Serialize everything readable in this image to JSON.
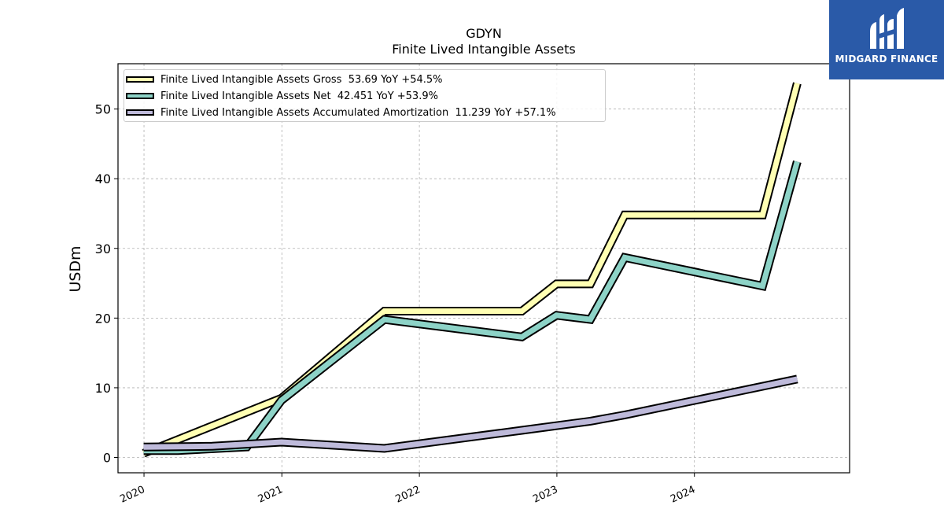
{
  "chart_data": {
    "type": "line",
    "title": "GDYN",
    "subtitle": "Finite Lived Intangible Assets",
    "ylabel": "USDm",
    "xlabel": "",
    "ylim": [
      -2.2,
      56.5
    ],
    "yticks": [
      0,
      10,
      20,
      30,
      40,
      50
    ],
    "xticks": [
      "2020",
      "2021",
      "2022",
      "2023",
      "2024"
    ],
    "grid": true,
    "legend_position": "top-left",
    "series": [
      {
        "name": "Finite Lived Intangible Assets Gross",
        "legend": "Finite Lived Intangible Assets Gross  53.69 YoY +54.5%",
        "color": "#ffffb3",
        "points": [
          [
            "2019-12-31",
            0.6
          ],
          [
            "2020-12-31",
            8.5
          ],
          [
            "2021-09-30",
            21.0
          ],
          [
            "2022-09-30",
            21.0
          ],
          [
            "2022-12-31",
            24.9
          ],
          [
            "2023-03-31",
            24.9
          ],
          [
            "2023-06-30",
            34.8
          ],
          [
            "2024-06-30",
            34.8
          ],
          [
            "2024-09-30",
            53.69
          ]
        ]
      },
      {
        "name": "Finite Lived Intangible Assets Net",
        "legend": "Finite Lived Intangible Assets Net  42.451 YoY +53.9%",
        "color": "#8dd3c7",
        "points": [
          [
            "2019-12-31",
            1.0
          ],
          [
            "2020-03-31",
            1.0
          ],
          [
            "2020-09-30",
            1.5
          ],
          [
            "2020-12-31",
            8.2
          ],
          [
            "2021-09-30",
            19.8
          ],
          [
            "2022-09-30",
            17.3
          ],
          [
            "2022-12-31",
            20.4
          ],
          [
            "2023-03-31",
            19.8
          ],
          [
            "2023-06-30",
            28.7
          ],
          [
            "2024-06-30",
            24.6
          ],
          [
            "2024-09-30",
            42.451
          ]
        ]
      },
      {
        "name": "Finite Lived Intangible Assets Accumulated Amortization",
        "legend": "Finite Lived Intangible Assets Accumulated Amortization  11.239 YoY +57.1%",
        "color": "#bebada",
        "points": [
          [
            "2019-12-31",
            1.5
          ],
          [
            "2020-06-30",
            1.6
          ],
          [
            "2020-12-31",
            2.2
          ],
          [
            "2021-09-30",
            1.3
          ],
          [
            "2022-09-30",
            3.9
          ],
          [
            "2023-03-31",
            5.2
          ],
          [
            "2023-06-30",
            6.1
          ],
          [
            "2024-09-30",
            11.239
          ]
        ]
      }
    ]
  },
  "brand": {
    "name": "MIDGARD FINANCE",
    "color": "#2a5aa8"
  }
}
